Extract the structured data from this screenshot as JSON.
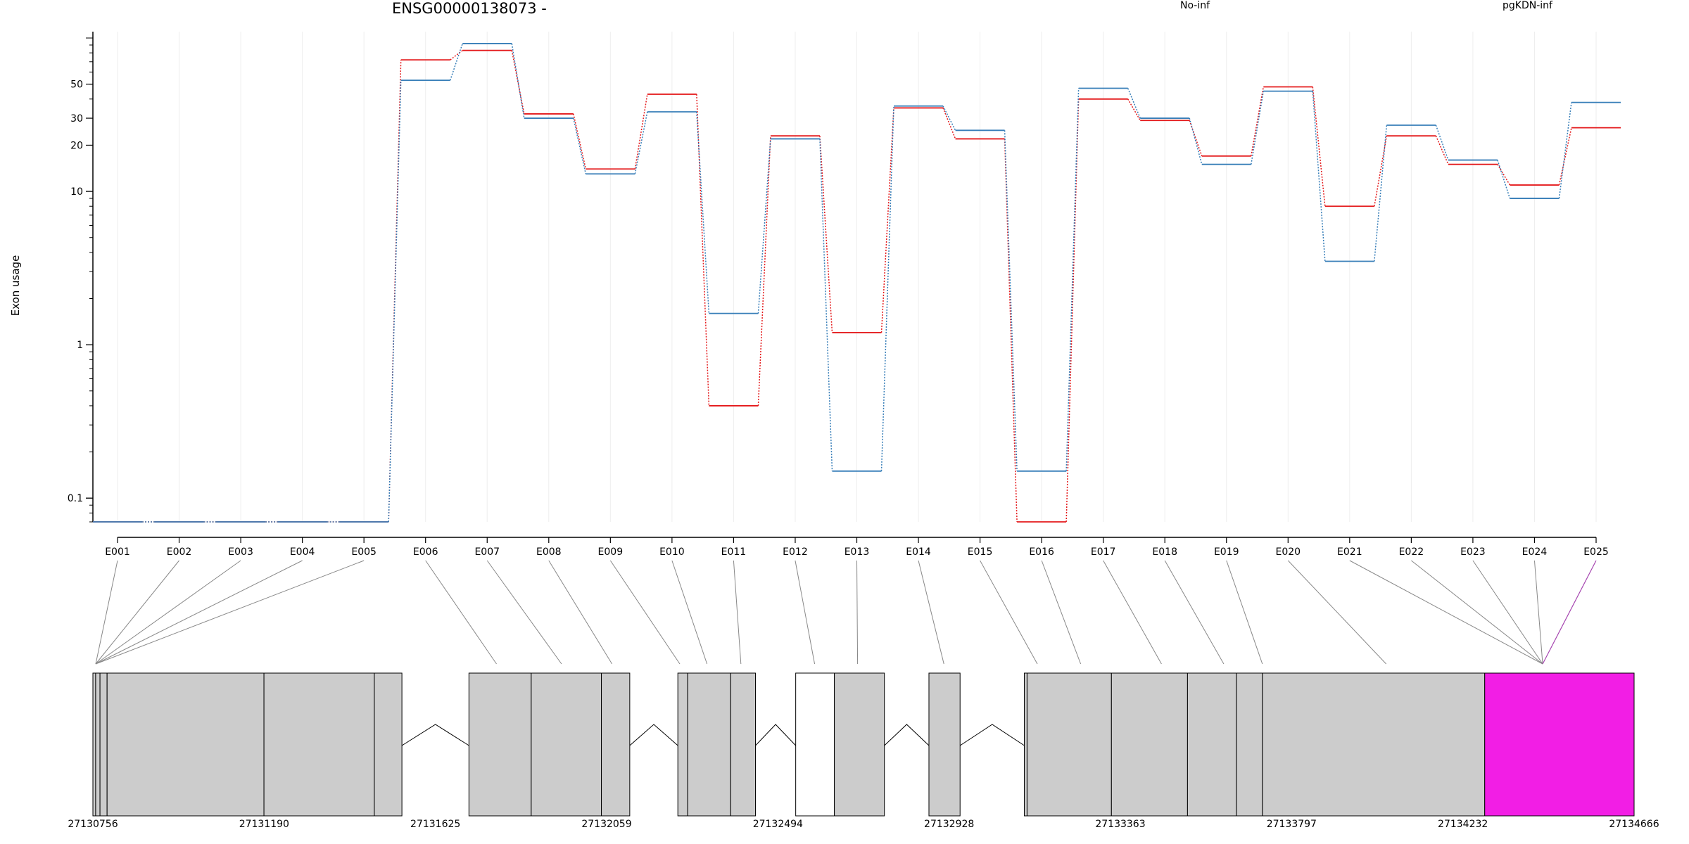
{
  "chart_data": {
    "type": "line",
    "title": "ENSG00000138073 -",
    "ylabel": "Exon usage",
    "yscale": "log",
    "yticks": [
      "0.1",
      "1",
      "10",
      "20",
      "30",
      "50"
    ],
    "ylim": [
      0.07,
      110
    ],
    "categories": [
      "E001",
      "E002",
      "E003",
      "E004",
      "E005",
      "E006",
      "E007",
      "E008",
      "E009",
      "E010",
      "E011",
      "E012",
      "E013",
      "E014",
      "E015",
      "E016",
      "E017",
      "E018",
      "E019",
      "E020",
      "E021",
      "E022",
      "E023",
      "E024",
      "E025"
    ],
    "series": [
      {
        "name": "No-inf",
        "color": "#e41a1c",
        "values": [
          0.07,
          0.07,
          0.07,
          0.07,
          0.07,
          72,
          83,
          32,
          14,
          43,
          0.4,
          23,
          1.2,
          35,
          22,
          0.07,
          40,
          29,
          17,
          48,
          8,
          23,
          15,
          11,
          26
        ]
      },
      {
        "name": "pgKDN-inf",
        "color": "#377eb8",
        "values": [
          0.07,
          0.07,
          0.07,
          0.07,
          0.07,
          53,
          92,
          30,
          13,
          33,
          1.6,
          22,
          0.15,
          36,
          25,
          0.15,
          47,
          30,
          15,
          45,
          3.5,
          27,
          16,
          9,
          38
        ]
      }
    ],
    "gene_model": {
      "coordinate_ticks": [
        "27130756",
        "27131190",
        "27131625",
        "27132059",
        "27132494",
        "27132928",
        "27133363",
        "27133797",
        "27134232",
        "27134666"
      ],
      "start": 27130756,
      "end": 27134666,
      "highlight_color": "#f21ee5",
      "exon_fill": "#cccccc",
      "exons": [
        [
          27130756,
          27130763
        ],
        [
          27130763,
          27130774
        ],
        [
          27130774,
          27130792
        ],
        [
          27130792,
          27131190
        ],
        [
          27131190,
          27131470
        ],
        [
          27131470,
          27131540
        ],
        [
          27131710,
          27131868
        ],
        [
          27131868,
          27132046
        ],
        [
          27132046,
          27132118
        ],
        [
          27132240,
          27132265
        ],
        [
          27132265,
          27132374
        ],
        [
          27132374,
          27132437
        ],
        [
          27132637,
          27132764
        ],
        [
          27132877,
          27132956
        ],
        [
          27133119,
          27133126
        ],
        [
          27133126,
          27133340
        ],
        [
          27133340,
          27133533
        ],
        [
          27133533,
          27133657
        ],
        [
          27133657,
          27133723
        ],
        [
          27133723,
          27134287
        ],
        [
          27134287,
          27134666
        ]
      ],
      "noncoding_exons": [
        [
          27132539,
          27132637
        ]
      ],
      "introns": [
        [
          27131540,
          27131710
        ],
        [
          27132118,
          27132240
        ],
        [
          27132437,
          27132539
        ],
        [
          27132764,
          27132877
        ],
        [
          27132956,
          27133119
        ]
      ],
      "exon_anchors": [
        27130770,
        27131000,
        27131325,
        27131500,
        27131700,
        27131780,
        27131945,
        27132073,
        27132245,
        27132314,
        27132400,
        27132587,
        27132696,
        27132915,
        27133152,
        27133262,
        27133467,
        27133625,
        27133723,
        27134037,
        27134434
      ]
    }
  }
}
